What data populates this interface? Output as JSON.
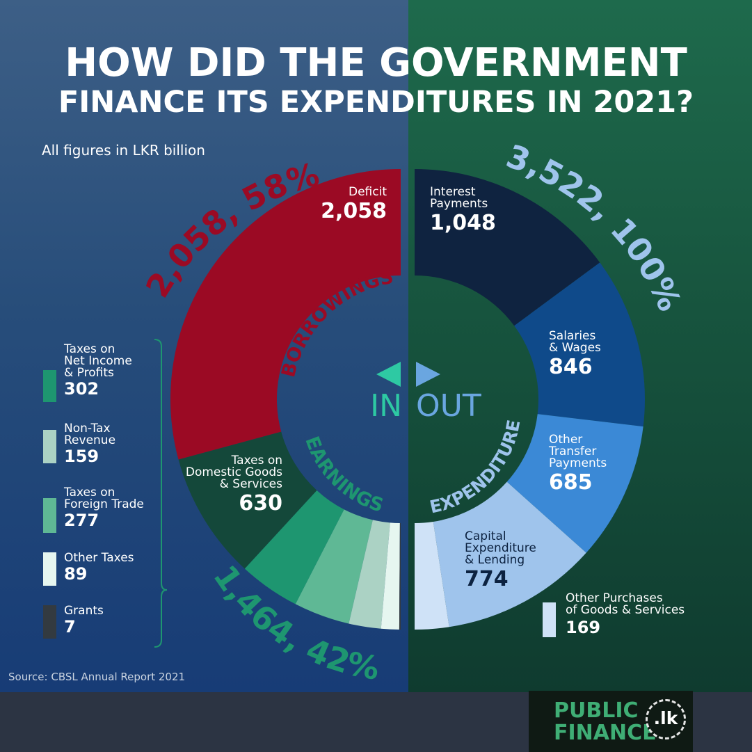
{
  "title": {
    "line1": "HOW DID THE GOVERNMENT",
    "line2": "FINANCE ITS EXPENDITURES IN 2021?"
  },
  "subtitle": "All figures in LKR billion",
  "source": "Source: CBSL Annual Report 2021",
  "center": {
    "in_label": "IN",
    "out_label": "OUT",
    "in_color": "#2ec9a3",
    "out_color": "#6aa6e0"
  },
  "chart_data": {
    "type": "pie",
    "unit": "LKR billion",
    "inflows": [
      {
        "name": "Deficit",
        "value": 2058,
        "color": "#9b0a24"
      },
      {
        "name": "Taxes on Domestic Goods & Services",
        "value": 630,
        "color": "#14483a"
      },
      {
        "name": "Taxes on Net Income & Profits",
        "value": 302,
        "color": "#1e9670"
      },
      {
        "name": "Taxes on Foreign Trade",
        "value": 277,
        "color": "#5fb895"
      },
      {
        "name": "Non-Tax Revenue",
        "value": 159,
        "color": "#abd2c4"
      },
      {
        "name": "Other Taxes",
        "value": 89,
        "color": "#e6f6f0"
      },
      {
        "name": "Grants",
        "value": 7,
        "color": "#333a40"
      }
    ],
    "outflows": [
      {
        "name": "Interest Payments",
        "value": 1048,
        "color": "#0f2340"
      },
      {
        "name": "Salaries & Wages",
        "value": 846,
        "color": "#0f4a8a"
      },
      {
        "name": "Other Transfer Payments",
        "value": 685,
        "color": "#3b89d6"
      },
      {
        "name": "Capital Expenditure & Lending",
        "value": 774,
        "color": "#9fc4ec"
      },
      {
        "name": "Other Purchases of Goods & Services",
        "value": 169,
        "color": "#cfe2f7"
      }
    ],
    "group_labels": {
      "borrowings": {
        "label": "BORROWINGS",
        "color": "#9b0a24"
      },
      "earnings": {
        "label": "EARNINGS",
        "color": "#1e9670"
      },
      "expenditure": {
        "label": "EXPENDITURE",
        "color": "#9fc4ec"
      }
    },
    "totals": {
      "borrowings": {
        "text": "2,058, 58%",
        "color": "#9b0a24"
      },
      "earnings": {
        "text": "1,464, 42%",
        "color": "#1e9670"
      },
      "expenditure": {
        "text": "3,522, 100%",
        "color": "#9fc4ec"
      }
    }
  },
  "labels": {
    "deficit": {
      "name": "Deficit",
      "value": "2,058"
    },
    "domestic": {
      "name_lines": [
        "Taxes on",
        "Domestic Goods",
        "& Services"
      ],
      "value": "630"
    },
    "interest": {
      "name_lines": [
        "Interest",
        "Payments"
      ],
      "value": "1,048"
    },
    "salaries": {
      "name_lines": [
        "Salaries",
        "& Wages"
      ],
      "value": "846"
    },
    "transfer": {
      "name_lines": [
        "Other",
        "Transfer",
        "Payments"
      ],
      "value": "685"
    },
    "capital": {
      "name_lines": [
        "Capital",
        "Expenditure",
        "& Lending"
      ],
      "value": "774"
    },
    "purchases": {
      "name_lines": [
        "Other Purchases",
        "of Goods & Services"
      ],
      "value": "169"
    }
  },
  "legend": [
    {
      "name_lines": [
        "Taxes on",
        "Net Income",
        "& Profits"
      ],
      "value": "302",
      "color": "#1e9670"
    },
    {
      "name_lines": [
        "Non-Tax",
        "Revenue"
      ],
      "value": "159",
      "color": "#abd2c4"
    },
    {
      "name_lines": [
        "Taxes on",
        "Foreign Trade"
      ],
      "value": "277",
      "color": "#5fb895"
    },
    {
      "name_lines": [
        "Other Taxes"
      ],
      "value": "89",
      "color": "#e6f6f0"
    },
    {
      "name_lines": [
        "Grants"
      ],
      "value": "7",
      "color": "#333a40"
    }
  ],
  "logo": {
    "line1": "PUBLIC",
    "line2": "FINANCE",
    "badge": ".lk"
  }
}
